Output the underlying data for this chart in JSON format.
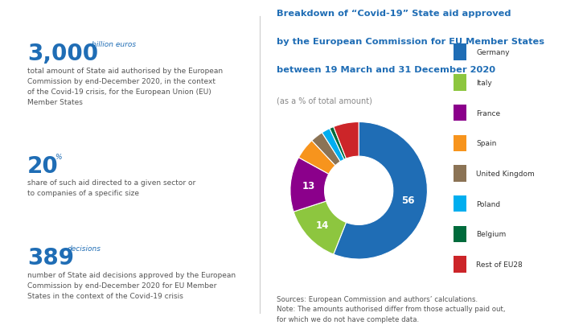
{
  "pie_labels": [
    "Germany",
    "Italy",
    "France",
    "Spain",
    "United Kingdom",
    "Poland",
    "Belgium",
    "Rest of EU28"
  ],
  "pie_values": [
    56,
    14,
    13,
    5,
    3,
    2,
    1,
    6
  ],
  "pie_colors": [
    "#1f6db5",
    "#8dc63f",
    "#8b008b",
    "#f7941d",
    "#8b7355",
    "#00aeef",
    "#006b3c",
    "#cc2529"
  ],
  "chart_title_line1": "Breakdown of “Covid-19” State aid approved",
  "chart_title_line2": "by the European Commission for EU Member States",
  "chart_title_line3": "between 19 March and 31 December 2020",
  "chart_subtitle": "(as a % of total amount)",
  "chart_title_color": "#1f6db5",
  "subtitle_color": "#888888",
  "source_text": "Sources: European Commission and authors’ calculations.\nNote: The amounts authorised differ from those actually paid out,\nfor which we do not have complete data.",
  "stat1_big": "3,000",
  "stat1_small": "billion euros",
  "stat1_desc": "total amount of State aid authorised by the European\nCommission by end-December 2020, in the context\nof the Covid-19 crisis, for the European Union (EU)\nMember States",
  "stat2_big": "20",
  "stat2_small": "%",
  "stat2_desc": "share of such aid directed to a given sector or\nto companies of a specific size",
  "stat3_big": "389",
  "stat3_small": "decisions",
  "stat3_desc": "number of State aid decisions approved by the European\nCommission by end-December 2020 for EU Member\nStates in the context of the Covid-19 crisis",
  "stat_big_color": "#1f6db5",
  "stat_small_color": "#1f6db5",
  "stat_desc_color": "#555555",
  "bg_color": "#ffffff",
  "divider_color": "#cccccc"
}
